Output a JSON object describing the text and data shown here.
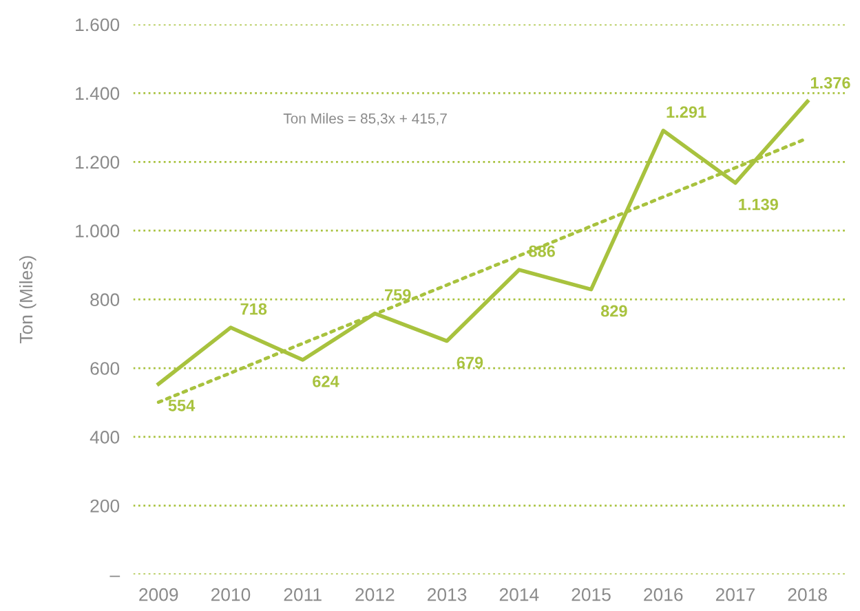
{
  "chart_data": {
    "type": "line",
    "ylabel": "Ton (Miles)",
    "categories": [
      "2009",
      "2010",
      "2011",
      "2012",
      "2013",
      "2014",
      "2015",
      "2016",
      "2017",
      "2018"
    ],
    "series": [
      {
        "color": "#a8c23e",
        "line_style": "solid",
        "values": [
          554,
          718,
          624,
          759,
          679,
          886,
          829,
          1291,
          1139,
          1376
        ],
        "value_labels": [
          "554",
          "718",
          "624",
          "759",
          "679",
          "886",
          "829",
          "1.291",
          "1.139",
          "1.376"
        ]
      },
      {
        "color": "#a8c23e",
        "line_style": "dotted",
        "values": [
          501,
          586,
          672,
          757,
          842,
          927,
          1013,
          1098,
          1183,
          1269
        ]
      }
    ],
    "annotations": [
      "Ton Miles = 85,3x + 415,7"
    ],
    "ylim": [
      0,
      1600
    ],
    "yticks": [
      {
        "value": 0,
        "label": "–"
      },
      200,
      400,
      600,
      800,
      {
        "value": 1000,
        "label": "1.000"
      },
      {
        "value": 1200,
        "label": "1.200"
      },
      {
        "value": 1400,
        "label": "1.400"
      },
      {
        "value": 1600,
        "label": "1.600"
      }
    ],
    "grid": "y",
    "legend": false,
    "marker": "none"
  }
}
